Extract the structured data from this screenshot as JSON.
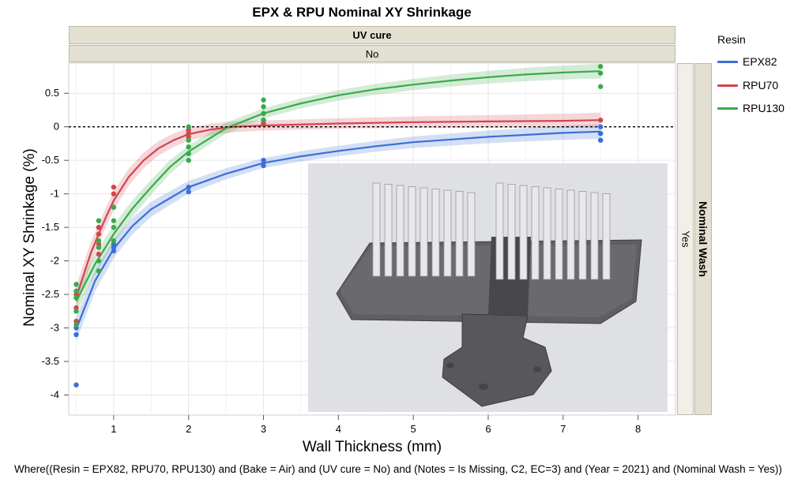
{
  "chart_data": {
    "type": "scatter",
    "title": "EPX & RPU Nominal XY Shrinkage",
    "xlabel": "Wall Thickness (mm)",
    "ylabel": "Nominal XY Shrinkage (%)",
    "xlim": [
      0.4,
      8.5
    ],
    "ylim": [
      -4.3,
      0.95
    ],
    "x_ticks": [
      1,
      2,
      3,
      4,
      5,
      6,
      7,
      8
    ],
    "y_ticks": [
      0.5,
      0,
      -0.5,
      -1,
      -1.5,
      -2,
      -2.5,
      -3,
      -3.5,
      -4
    ],
    "reference_line_y": 0,
    "grid": true,
    "legend_title": "Resin",
    "legend_position": "right",
    "facets": {
      "column_header_label": "UV cure",
      "column_value": "No",
      "row_header_label": "Nominal Wash",
      "row_value": "Yes"
    },
    "series": [
      {
        "name": "EPX82",
        "color": "#3b6fd6",
        "points": [
          [
            0.5,
            -3.85
          ],
          [
            0.5,
            -3.1
          ],
          [
            0.5,
            -3.0
          ],
          [
            1,
            -1.85
          ],
          [
            1,
            -1.8
          ],
          [
            1,
            -1.75
          ],
          [
            2,
            -0.9
          ],
          [
            2,
            -0.97
          ],
          [
            3,
            -0.5
          ],
          [
            3,
            -0.58
          ],
          [
            7.5,
            0.0
          ],
          [
            7.5,
            -0.1
          ],
          [
            7.5,
            -0.2
          ]
        ],
        "fit": [
          [
            0.5,
            -3.02
          ],
          [
            0.75,
            -2.3
          ],
          [
            1,
            -1.82
          ],
          [
            1.25,
            -1.48
          ],
          [
            1.5,
            -1.23
          ],
          [
            2,
            -0.9
          ],
          [
            2.5,
            -0.7
          ],
          [
            3,
            -0.54
          ],
          [
            3.5,
            -0.44
          ],
          [
            4,
            -0.36
          ],
          [
            4.5,
            -0.29
          ],
          [
            5,
            -0.23
          ],
          [
            5.5,
            -0.19
          ],
          [
            6,
            -0.15
          ],
          [
            6.5,
            -0.12
          ],
          [
            7,
            -0.09
          ],
          [
            7.5,
            -0.07
          ]
        ]
      },
      {
        "name": "RPU70",
        "color": "#d34450",
        "points": [
          [
            0.5,
            -2.5
          ],
          [
            0.5,
            -2.7
          ],
          [
            0.5,
            -2.9
          ],
          [
            0.8,
            -1.5
          ],
          [
            0.8,
            -1.6
          ],
          [
            0.8,
            -1.75
          ],
          [
            0.8,
            -1.9
          ],
          [
            1,
            -0.9
          ],
          [
            1,
            -1.0
          ],
          [
            1,
            -1.2
          ],
          [
            2,
            -0.05
          ],
          [
            2,
            -0.1
          ],
          [
            2,
            -0.15
          ],
          [
            3,
            0.05
          ],
          [
            3,
            0.1
          ],
          [
            7.5,
            0.1
          ]
        ],
        "fit": [
          [
            0.5,
            -2.55
          ],
          [
            0.6,
            -2.2
          ],
          [
            0.7,
            -1.87
          ],
          [
            0.8,
            -1.6
          ],
          [
            0.9,
            -1.34
          ],
          [
            1,
            -1.1
          ],
          [
            1.2,
            -0.75
          ],
          [
            1.4,
            -0.5
          ],
          [
            1.6,
            -0.32
          ],
          [
            1.8,
            -0.2
          ],
          [
            2,
            -0.11
          ],
          [
            2.3,
            -0.04
          ],
          [
            2.6,
            0.0
          ],
          [
            3,
            0.02
          ],
          [
            4,
            0.05
          ],
          [
            5,
            0.07
          ],
          [
            6,
            0.08
          ],
          [
            7,
            0.09
          ],
          [
            7.5,
            0.1
          ]
        ]
      },
      {
        "name": "RPU130",
        "color": "#3aaa4a",
        "points": [
          [
            0.5,
            -2.35
          ],
          [
            0.5,
            -2.45
          ],
          [
            0.5,
            -2.55
          ],
          [
            0.5,
            -2.75
          ],
          [
            0.5,
            -2.95
          ],
          [
            0.8,
            -1.4
          ],
          [
            0.8,
            -1.7
          ],
          [
            0.8,
            -1.8
          ],
          [
            0.8,
            -2.0
          ],
          [
            0.8,
            -2.15
          ],
          [
            1,
            -1.2
          ],
          [
            1,
            -1.4
          ],
          [
            1,
            -1.5
          ],
          [
            1,
            -1.7
          ],
          [
            2,
            0.0
          ],
          [
            2,
            -0.2
          ],
          [
            2,
            -0.3
          ],
          [
            2,
            -0.4
          ],
          [
            2,
            -0.5
          ],
          [
            3,
            0.4
          ],
          [
            3,
            0.3
          ],
          [
            3,
            0.2
          ],
          [
            3,
            0.1
          ],
          [
            7.5,
            0.9
          ],
          [
            7.5,
            0.8
          ],
          [
            7.5,
            0.6
          ]
        ],
        "fit": [
          [
            0.5,
            -2.6
          ],
          [
            0.75,
            -2.05
          ],
          [
            1,
            -1.6
          ],
          [
            1.25,
            -1.22
          ],
          [
            1.5,
            -0.9
          ],
          [
            1.75,
            -0.6
          ],
          [
            2,
            -0.37
          ],
          [
            2.5,
            -0.02
          ],
          [
            3,
            0.2
          ],
          [
            3.5,
            0.35
          ],
          [
            4,
            0.47
          ],
          [
            4.5,
            0.56
          ],
          [
            5,
            0.63
          ],
          [
            5.5,
            0.69
          ],
          [
            6,
            0.74
          ],
          [
            6.5,
            0.78
          ],
          [
            7,
            0.81
          ],
          [
            7.5,
            0.83
          ]
        ]
      }
    ]
  },
  "footnote": "Where((Resin = EPX82, RPU70, RPU130) and (Bake = Air) and (UV cure = No) and (Notes = Is Missing, C2, EC=3) and (Year = 2021) and (Nominal Wash = Yes))"
}
